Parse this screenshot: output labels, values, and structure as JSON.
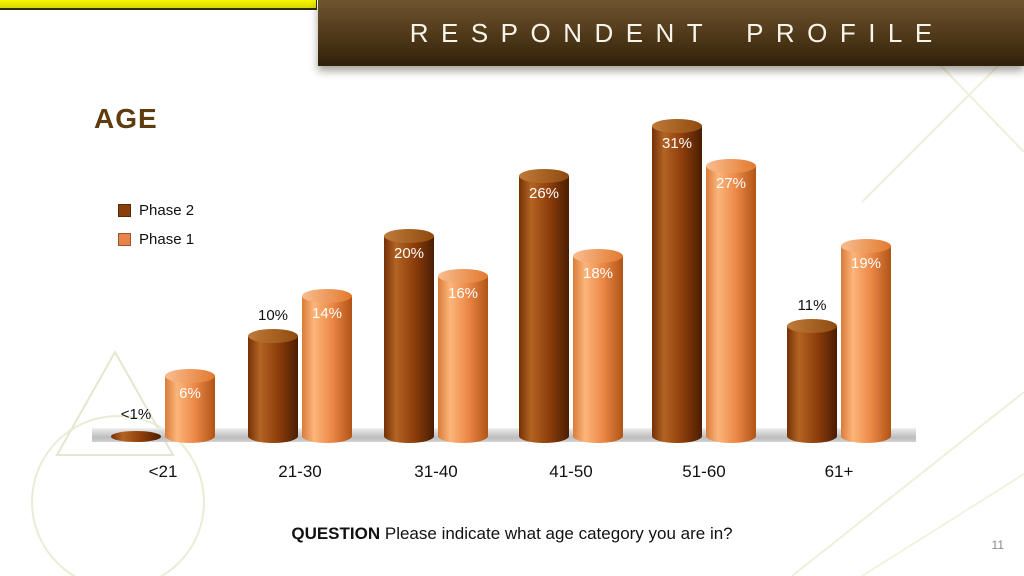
{
  "slide": {
    "title": "RESPONDENT PROFILE",
    "section_heading": "AGE",
    "question_bold": "QUESTION",
    "question_rest": " Please indicate what age category you are in?",
    "page_number": "11"
  },
  "colors": {
    "title_bar_brown": "#4e3818",
    "accent_bar_yellow": "#e9e900",
    "phase2_brown": "#8a3e0b",
    "phase1_orange": "#e8834a",
    "floor_gray": "#c9c9c9",
    "heading_text": "#5e3c10"
  },
  "legend": {
    "items": [
      {
        "label": "Phase 2",
        "color": "#8a3e0b"
      },
      {
        "label": "Phase 1",
        "color": "#e8834a"
      }
    ]
  },
  "chart_data": {
    "type": "bar",
    "style": "3d-cylinder",
    "title": "AGE",
    "categories": [
      "<21",
      "21-30",
      "31-40",
      "41-50",
      "51-60",
      "61+"
    ],
    "series": [
      {
        "name": "Phase 2",
        "color": "#8a3e0b",
        "values": [
          0.5,
          10,
          20,
          26,
          31,
          11
        ],
        "value_labels": [
          "<1%",
          "10%",
          "20%",
          "26%",
          "31%",
          "11%"
        ]
      },
      {
        "name": "Phase 1",
        "color": "#e8834a",
        "values": [
          6,
          14,
          16,
          18,
          27,
          19
        ],
        "value_labels": [
          "6%",
          "14%",
          "16%",
          "18%",
          "27%",
          "19%"
        ]
      }
    ],
    "ylim": [
      0,
      33
    ],
    "grid": false,
    "legend_position": "upper-left",
    "xlabel": "",
    "ylabel": ""
  }
}
